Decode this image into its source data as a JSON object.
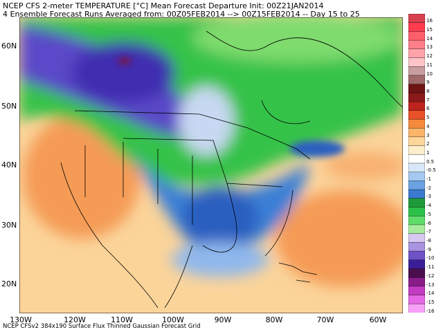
{
  "header": {
    "line1": "NCEP CFS 2-meter TEMPERATURE [°C] Mean Forecast Departure Init: 00Z21JAN2014",
    "line2": "4 Ensemble Forecast Runs Averaged from: 00Z05FEB2014 --> 00Z15FEB2014 -- Day 15 to 25"
  },
  "axes": {
    "lat_labels": [
      "60N",
      "50N",
      "40N",
      "30N",
      "20N"
    ],
    "lon_labels": [
      "130W",
      "120W",
      "110W",
      "100W",
      "90W",
      "80W",
      "70W",
      "60W"
    ]
  },
  "footer": "NCEP CFSv2 384x190 Surface Flux Thinned Gaussian Forecast Grid",
  "colorbar": {
    "labels": [
      "16",
      "15",
      "14",
      "13",
      "12",
      "11",
      "10",
      "9",
      "8",
      "7",
      "6",
      "5",
      "4",
      "3",
      "2",
      "1",
      "0.5",
      "-0.5",
      "-1",
      "-2",
      "-3",
      "-4",
      "-5",
      "-6",
      "-7",
      "-8",
      "-9",
      "-10",
      "-11",
      "-12",
      "-13",
      "-14",
      "-15",
      "-16"
    ],
    "colors": [
      "#d8414f",
      "#ff3b4e",
      "#ff5e6b",
      "#ff7f88",
      "#ffa2a9",
      "#ffc4c8",
      "#c89ea0",
      "#a06a6a",
      "#6e1414",
      "#8b1a1a",
      "#c0241e",
      "#e8512a",
      "#f58a3c",
      "#fbb46a",
      "#fdd69a",
      "#fdeecb",
      "#ffffff",
      "#d8e8f8",
      "#a4c8ef",
      "#6aa2e2",
      "#3b7ad0",
      "#1e9a3a",
      "#2bc048",
      "#5fdc6a",
      "#a6ec9c",
      "#d6c8f0",
      "#a894e0",
      "#6e52c8",
      "#3a1e98",
      "#4a0e4e",
      "#8a1c8a",
      "#c23cc2",
      "#e468e4",
      "#f8a0f8"
    ]
  },
  "legend_colors": {
    "warm": "#f59b57",
    "cold_deep": "#4b3fbf",
    "green": "#35c24a",
    "blue": "#3a7fd6"
  }
}
